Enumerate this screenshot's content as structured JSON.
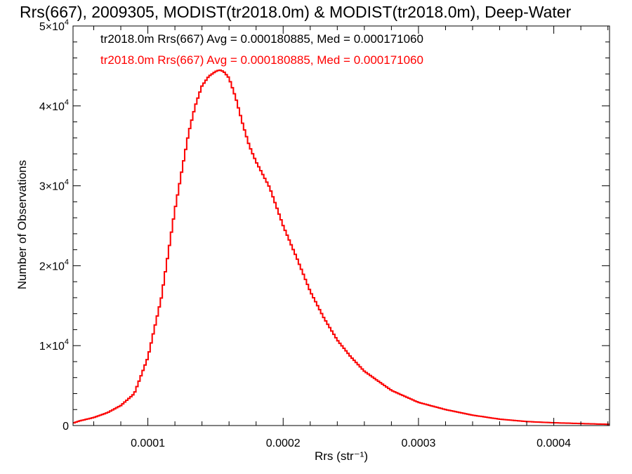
{
  "chart_data": {
    "type": "line",
    "title": "Rrs(667), 2009305, MODIST(tr2018.0m) & MODIST(tr2018.0m), Deep-Water",
    "xlabel": "Rrs (str⁻¹)",
    "ylabel": "Number of Observations",
    "xlim": [
      4.47e-05,
      0.0004412
    ],
    "ylim": [
      0,
      50000
    ],
    "x_ticks": [
      {
        "value": 0.0001,
        "label": "0.0001"
      },
      {
        "value": 0.0002,
        "label": "0.0002"
      },
      {
        "value": 0.0003,
        "label": "0.0003"
      },
      {
        "value": 0.0004,
        "label": "0.0004"
      }
    ],
    "y_ticks": [
      {
        "value": 0,
        "mant": "0",
        "exp": ""
      },
      {
        "value": 10000,
        "mant": "1×10",
        "exp": "4"
      },
      {
        "value": 20000,
        "mant": "2×10",
        "exp": "4"
      },
      {
        "value": 30000,
        "mant": "3×10",
        "exp": "4"
      },
      {
        "value": 40000,
        "mant": "4×10",
        "exp": "4"
      },
      {
        "value": 50000,
        "mant": "5×10",
        "exp": "4"
      }
    ],
    "legend": [
      "tr2018.0m Rrs(667) Avg = 0.000180885, Med = 0.000171060",
      "tr2018.0m Rrs(667) Avg = 0.000180885, Med = 0.000171060"
    ],
    "series": [
      {
        "color": "#000000",
        "x": [
          4.47e-05,
          5e-05,
          6e-05,
          7e-05,
          8e-05,
          9e-05,
          0.0001,
          0.00011,
          0.00012,
          0.00013,
          0.000135,
          0.00014,
          0.000145,
          0.00015,
          0.000153,
          0.000156,
          0.00016,
          0.000165,
          0.00017,
          0.000175,
          0.00018,
          0.00019,
          0.0002,
          0.00021,
          0.00022,
          0.00023,
          0.00024,
          0.00025,
          0.00026,
          0.00028,
          0.0003,
          0.00032,
          0.00034,
          0.00036,
          0.00038,
          0.0004,
          0.00042,
          0.0004412
        ],
        "values": [
          300,
          600,
          1000,
          1600,
          2500,
          4000,
          8500,
          16000,
          27000,
          36500,
          40000,
          42500,
          43700,
          44300,
          44500,
          44300,
          43500,
          41000,
          37800,
          35000,
          33000,
          29800,
          25000,
          21000,
          16800,
          13500,
          10700,
          8600,
          6800,
          4400,
          2900,
          2000,
          1300,
          800,
          500,
          350,
          250,
          150
        ]
      },
      {
        "color": "#ff0000",
        "x": [
          4.47e-05,
          5e-05,
          6e-05,
          7e-05,
          8e-05,
          9e-05,
          0.0001,
          0.00011,
          0.00012,
          0.00013,
          0.000135,
          0.00014,
          0.000145,
          0.00015,
          0.000153,
          0.000156,
          0.00016,
          0.000165,
          0.00017,
          0.000175,
          0.00018,
          0.00019,
          0.0002,
          0.00021,
          0.00022,
          0.00023,
          0.00024,
          0.00025,
          0.00026,
          0.00028,
          0.0003,
          0.00032,
          0.00034,
          0.00036,
          0.00038,
          0.0004,
          0.00042,
          0.0004412
        ],
        "values": [
          300,
          600,
          1000,
          1600,
          2500,
          4000,
          8500,
          16000,
          27000,
          36500,
          40000,
          42500,
          43700,
          44300,
          44500,
          44300,
          43500,
          41000,
          37800,
          35000,
          33000,
          29800,
          25000,
          21000,
          16800,
          13500,
          10700,
          8600,
          6800,
          4400,
          2900,
          2000,
          1300,
          800,
          500,
          350,
          250,
          150
        ]
      }
    ]
  }
}
